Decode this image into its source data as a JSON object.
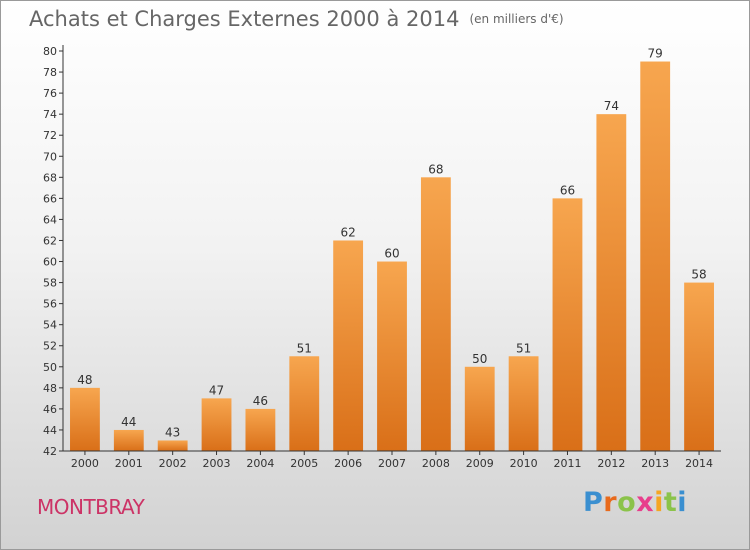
{
  "title": "Achats et Charges Externes 2000 à 2014",
  "subtitle": "(en milliers d'€)",
  "town": "MONTBRAY",
  "logo": {
    "letters": [
      "P",
      "r",
      "o",
      "x",
      "i",
      "t",
      "i"
    ],
    "colors": [
      "#3a8fd0",
      "#e86a1c",
      "#8bc34a",
      "#e83e8c",
      "#f5a623",
      "#8bc34a",
      "#3a8fd0"
    ]
  },
  "colors": {
    "bar_top": "#f7a64f",
    "bar_bottom": "#d96f18",
    "axis": "#333333",
    "title": "#666666",
    "town": "#cc3366"
  },
  "chart_data": {
    "type": "bar",
    "title": "Achats et Charges Externes 2000 à 2014",
    "subtitle": "(en milliers d'€)",
    "categories": [
      "2000",
      "2001",
      "2002",
      "2003",
      "2004",
      "2005",
      "2006",
      "2007",
      "2008",
      "2009",
      "2010",
      "2011",
      "2012",
      "2013",
      "2014"
    ],
    "values": [
      48,
      44,
      43,
      47,
      46,
      51,
      62,
      60,
      68,
      50,
      51,
      66,
      74,
      79,
      58
    ],
    "ylim": [
      42,
      80
    ],
    "yticks": [
      42,
      44,
      46,
      48,
      50,
      52,
      54,
      56,
      58,
      60,
      62,
      64,
      66,
      68,
      70,
      72,
      74,
      76,
      78,
      80
    ],
    "grid": false,
    "data_labels": true
  }
}
